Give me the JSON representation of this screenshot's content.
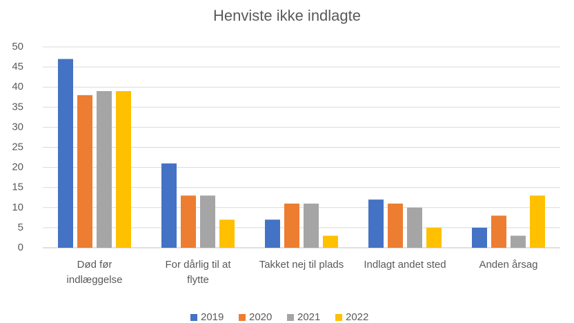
{
  "chart_data": {
    "type": "bar",
    "title": "Henviste ikke indlagte",
    "categories": [
      "Død før indlæggelse",
      "For dårlig til at flytte",
      "Takket nej til plads",
      "Indlagt andet sted",
      "Anden årsag"
    ],
    "series": [
      {
        "name": "2019",
        "color": "#4472c4",
        "values": [
          47,
          21,
          7,
          12,
          5
        ]
      },
      {
        "name": "2020",
        "color": "#ed7d31",
        "values": [
          38,
          13,
          11,
          11,
          8
        ]
      },
      {
        "name": "2021",
        "color": "#a5a5a5",
        "values": [
          39,
          13,
          11,
          10,
          3
        ]
      },
      {
        "name": "2022",
        "color": "#ffc000",
        "values": [
          39,
          7,
          3,
          5,
          13
        ]
      }
    ],
    "ylim": [
      0,
      50
    ],
    "yticks": [
      0,
      5,
      10,
      15,
      20,
      25,
      30,
      35,
      40,
      45,
      50
    ],
    "grid": true,
    "legend": "bottom"
  }
}
